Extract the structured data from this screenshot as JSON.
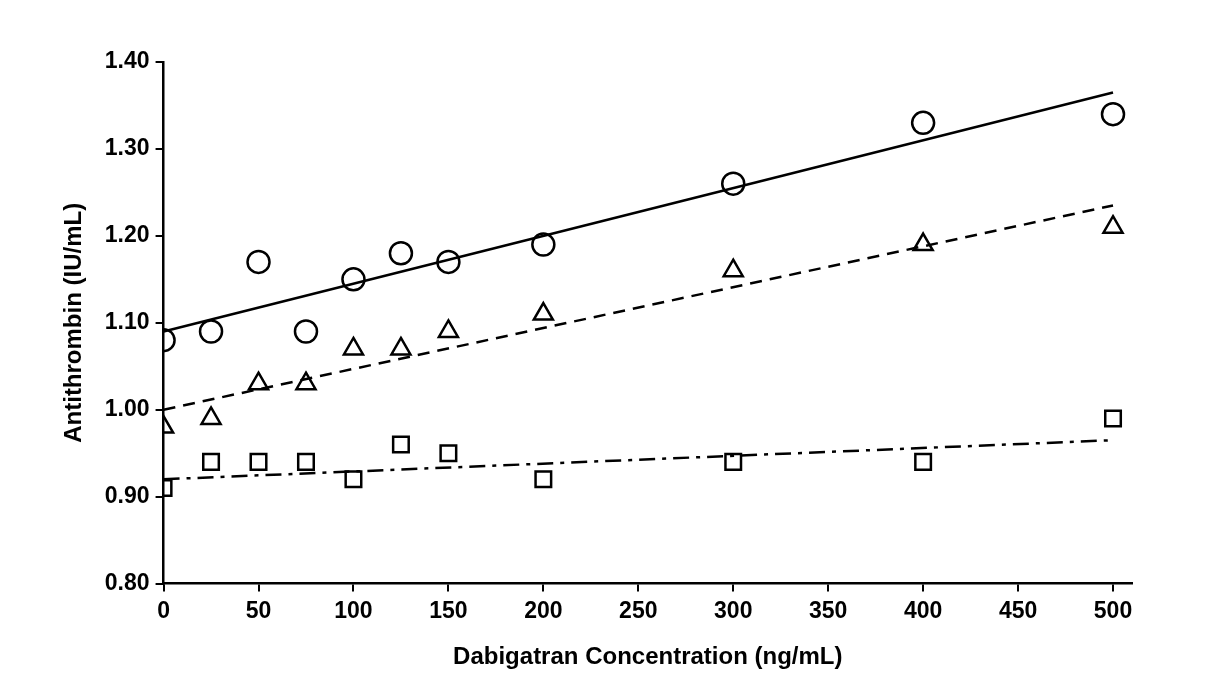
{
  "chart_data": {
    "type": "scatter",
    "xlabel": "Dabigatran Concentration (ng/mL)",
    "ylabel": "Antithrombin (IU/mL)",
    "xlim": [
      0,
      510
    ],
    "xticks": [
      0,
      50,
      100,
      150,
      200,
      250,
      300,
      350,
      400,
      450,
      500
    ],
    "ylim": [
      0.8,
      1.4
    ],
    "yticks": [
      {
        "value": 0.8,
        "label": "0.80"
      },
      {
        "value": 0.9,
        "label": "0.90"
      },
      {
        "value": 1.0,
        "label": "1.00"
      },
      {
        "value": 1.1,
        "label": "1.10"
      },
      {
        "value": 1.2,
        "label": "1.20"
      },
      {
        "value": 1.3,
        "label": "1.30"
      },
      {
        "value": 1.4,
        "label": "1.40"
      }
    ],
    "grid": false,
    "series": [
      {
        "type": "scatter",
        "marker": "circle",
        "color": "#000000",
        "x": [
          0,
          25,
          50,
          75,
          100,
          125,
          150,
          200,
          300,
          400,
          500
        ],
        "values": [
          1.08,
          1.09,
          1.17,
          1.09,
          1.15,
          1.18,
          1.17,
          1.19,
          1.26,
          1.33,
          1.34
        ]
      },
      {
        "type": "scatter",
        "marker": "triangle",
        "color": "#000000",
        "x": [
          0,
          25,
          50,
          75,
          100,
          125,
          150,
          200,
          300,
          400,
          500
        ],
        "values": [
          0.98,
          0.99,
          1.03,
          1.03,
          1.07,
          1.07,
          1.09,
          1.11,
          1.16,
          1.19,
          1.21
        ]
      },
      {
        "type": "scatter",
        "marker": "square",
        "color": "#000000",
        "x": [
          0,
          25,
          50,
          75,
          100,
          125,
          150,
          200,
          300,
          400,
          500
        ],
        "values": [
          0.91,
          0.94,
          0.94,
          0.94,
          0.92,
          0.96,
          0.95,
          0.92,
          0.94,
          0.94,
          0.99
        ]
      },
      {
        "type": "line",
        "marker": "none",
        "line_style": "solid",
        "color": "#000000",
        "x": [
          0,
          500
        ],
        "values": [
          1.09,
          1.365
        ]
      },
      {
        "type": "line",
        "marker": "none",
        "line_style": "dashed",
        "color": "#000000",
        "x": [
          0,
          500
        ],
        "values": [
          1.0,
          1.235
        ]
      },
      {
        "type": "line",
        "marker": "none",
        "line_style": "dashdot",
        "color": "#000000",
        "x": [
          0,
          500
        ],
        "values": [
          0.92,
          0.965
        ]
      }
    ]
  }
}
